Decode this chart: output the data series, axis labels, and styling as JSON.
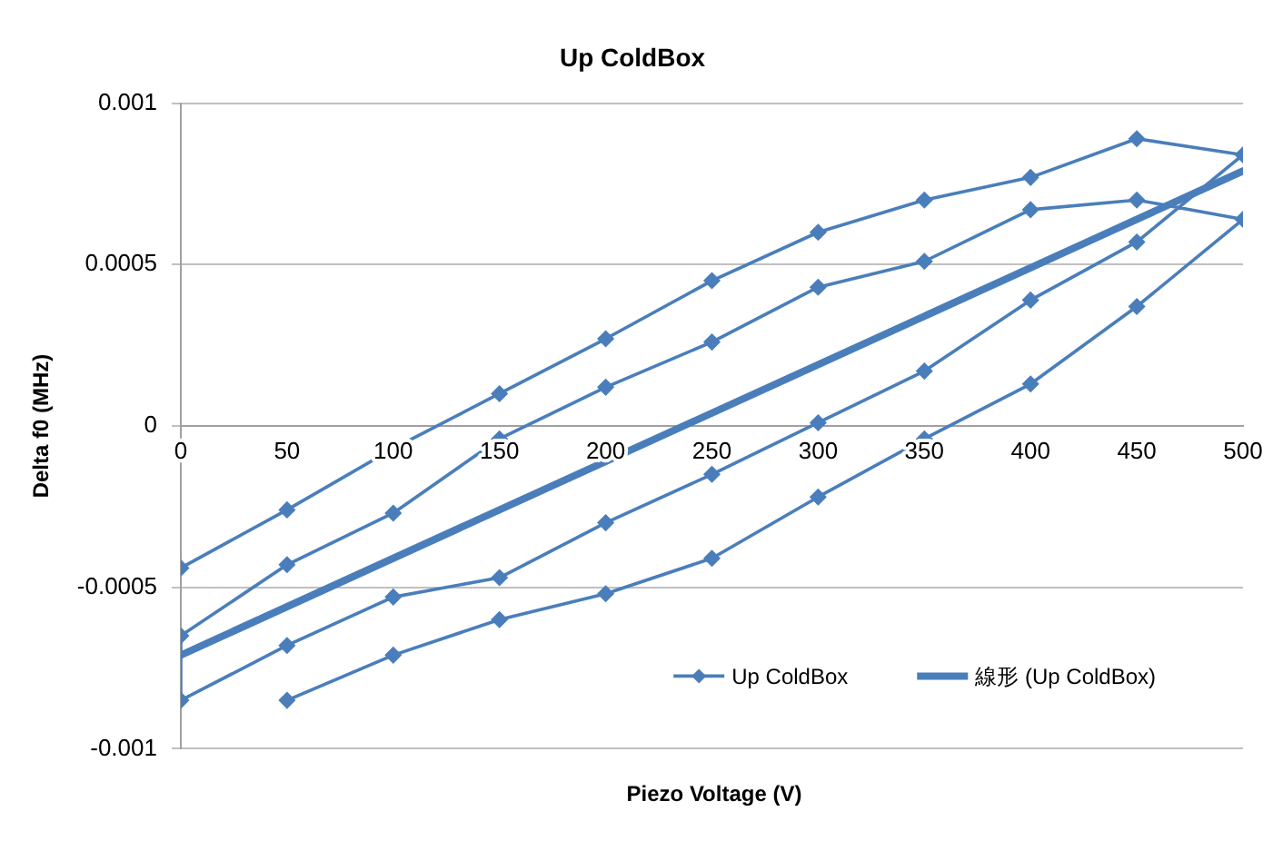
{
  "chart_data": {
    "type": "line",
    "title": "Up ColdBox",
    "xlabel": "Piezo Voltage (V)",
    "ylabel": "Delta f0 (MHz)",
    "xlim": [
      0,
      500
    ],
    "xticks": [
      0,
      50,
      100,
      150,
      200,
      250,
      300,
      350,
      400,
      450,
      500
    ],
    "ylim": [
      -0.001,
      0.001
    ],
    "yticks": [
      -0.001,
      -0.0005,
      0,
      0.0005,
      0.001
    ],
    "grid": "y",
    "legend": "bottom right",
    "series": [
      {
        "name": "Up ColdBox",
        "color": "#4a7ebb",
        "marker": "diamond",
        "x": [
          50,
          100,
          150,
          200,
          250,
          300,
          350,
          400,
          450,
          500,
          450,
          400,
          350,
          300,
          250,
          200,
          150,
          100,
          50,
          0,
          0,
          50,
          100,
          150,
          200,
          250,
          300,
          350,
          400,
          450,
          500,
          450,
          400,
          350,
          300,
          250,
          200,
          150,
          100,
          50,
          0
        ],
        "values": [
          -0.00085,
          -0.00071,
          -0.0006,
          -0.00052,
          -0.00041,
          -0.00022,
          -4e-05,
          0.00013,
          0.00037,
          0.00064,
          0.0007,
          0.00067,
          0.00051,
          0.00043,
          0.00026,
          0.00012,
          -4e-05,
          -0.00027,
          -0.00043,
          -0.00065,
          -0.00085,
          -0.00068,
          -0.00053,
          -0.00047,
          -0.0003,
          -0.00015,
          1e-05,
          0.00017,
          0.00039,
          0.00057,
          0.00084,
          0.00089,
          0.00077,
          0.0007,
          0.0006,
          0.00045,
          0.00027,
          0.0001,
          -7e-05,
          -0.00026,
          -0.00044
        ]
      },
      {
        "name": "線形 (Up ColdBox)",
        "color": "#4a7ebb",
        "marker": "none",
        "x": [
          0,
          500
        ],
        "values": [
          -0.00071,
          0.00079
        ]
      }
    ]
  }
}
